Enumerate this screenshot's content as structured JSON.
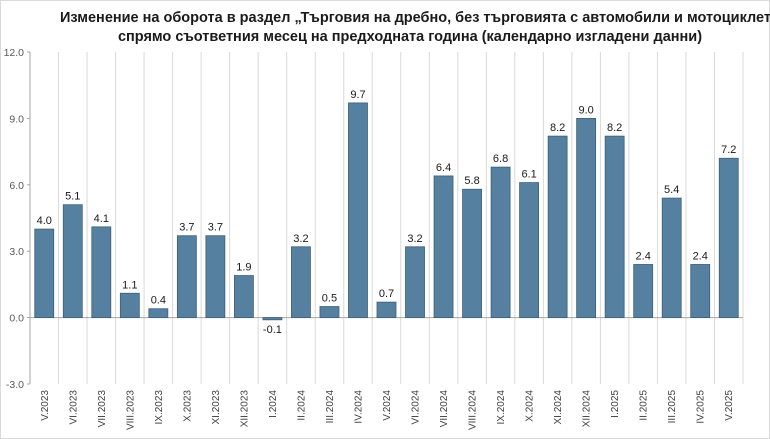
{
  "chart_data": {
    "type": "bar",
    "title_line1": "Изменение на оборота в раздел „Търговия на дребно, без търговията с автомобили и мотоциклети",
    "title_line2": "спрямо съответния месец на предходната година (календарно изгладени данни)",
    "categories": [
      "V.2023",
      "VI.2023",
      "VII.2023",
      "VIII.2023",
      "IX.2023",
      "X.2023",
      "XI.2023",
      "XII.2023",
      "I.2024",
      "II.2024",
      "III.2024",
      "IV.2024",
      "V.2024",
      "VI.2024",
      "VII.2024",
      "VIII.2024",
      "IX.2024",
      "X.2024",
      "XI.2024",
      "XII.2024",
      "I.2025",
      "II.2025",
      "III.2025",
      "IV.2025",
      "V.2025"
    ],
    "values": [
      4.0,
      5.1,
      4.1,
      1.1,
      0.4,
      3.7,
      3.7,
      1.9,
      -0.1,
      3.2,
      0.5,
      9.7,
      0.7,
      3.2,
      6.4,
      5.8,
      6.8,
      6.1,
      8.2,
      9.0,
      8.2,
      2.4,
      5.4,
      2.4,
      7.2
    ],
    "data_labels": [
      "4.0",
      "5.1",
      "4.1",
      "1.1",
      "0.4",
      "3.7",
      "3.7",
      "1.9",
      "-0.1",
      "3.2",
      "0.5",
      "9.7",
      "0.7",
      "3.2",
      "6.4",
      "5.8",
      "6.8",
      "6.1",
      "8.2",
      "9.0",
      "8.2",
      "2.4",
      "5.4",
      "2.4",
      "7.2"
    ],
    "ylim": [
      -3.0,
      12.0
    ],
    "yticks": [
      -3.0,
      0.0,
      3.0,
      6.0,
      9.0,
      12.0
    ],
    "ytick_labels": [
      "-3.0",
      "0.0",
      "3.0",
      "6.0",
      "9.0",
      "12.0"
    ],
    "grid": "vertical",
    "legend": "none",
    "bar_color": "#55809f",
    "bar_border_color": "#3c5f7a",
    "grid_color": "#d9d9d9",
    "axis_color": "#a6a6a6"
  }
}
